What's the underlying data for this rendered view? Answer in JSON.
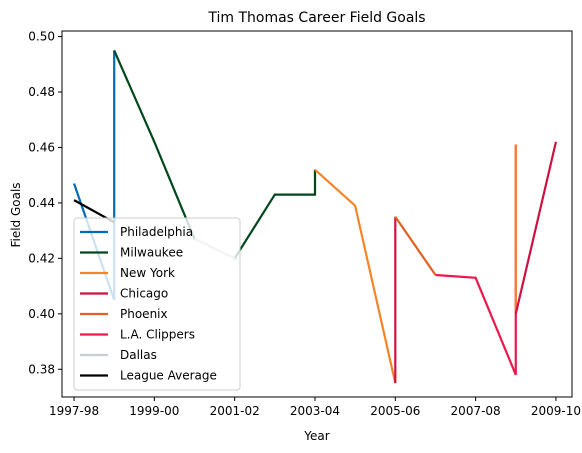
{
  "chart_data": {
    "type": "line",
    "title": "Tim Thomas  Career Field Goals",
    "xlabel": "Year",
    "ylabel": "Field Goals",
    "x_tick_labels": [
      "1997-98",
      "1999-00",
      "2001-02",
      "2003-04",
      "2005-06",
      "2007-08",
      "2009-10"
    ],
    "xlim": [
      1997.7,
      2010.4
    ],
    "ylim": [
      0.37,
      0.502
    ],
    "y_ticks": [
      0.38,
      0.4,
      0.42,
      0.44,
      0.46,
      0.48,
      0.5
    ],
    "y_tick_labels": [
      "0.38",
      "0.40",
      "0.42",
      "0.44",
      "0.46",
      "0.48",
      "0.50"
    ],
    "grid": false,
    "legend_placement": "lower-left",
    "series": [
      {
        "name": "Philadelphia",
        "color": "#006bb6",
        "points": [
          [
            1998,
            0.447
          ],
          [
            1999,
            0.405
          ],
          [
            1999,
            0.495
          ]
        ]
      },
      {
        "name": "Milwaukee",
        "color": "#00471b",
        "points": [
          [
            1999,
            0.495
          ],
          [
            2000,
            0.462
          ],
          [
            2001,
            0.427
          ],
          [
            2002,
            0.42
          ],
          [
            2003,
            0.443
          ],
          [
            2004,
            0.443
          ],
          [
            2004,
            0.452
          ]
        ]
      },
      {
        "name": "New York",
        "color": "#f58426",
        "points": [
          [
            2004,
            0.452
          ],
          [
            2005,
            0.439
          ],
          [
            2006,
            0.375
          ]
        ]
      },
      {
        "name": "Chicago",
        "color": "#ce1141",
        "points": [
          [
            2006,
            0.375
          ],
          [
            2006,
            0.435
          ]
        ]
      },
      {
        "name": "Phoenix",
        "color": "#e56020",
        "points": [
          [
            2006,
            0.435
          ],
          [
            2007,
            0.414
          ]
        ]
      },
      {
        "name": "L.A. Clippers",
        "color": "#ed174c",
        "points": [
          [
            2007,
            0.414
          ],
          [
            2008,
            0.413
          ],
          [
            2009,
            0.378
          ],
          [
            2009,
            0.461
          ]
        ]
      },
      {
        "name": "New York",
        "color": "#f58426",
        "legend": false,
        "points": [
          [
            2009,
            0.461
          ],
          [
            2009,
            0.4
          ]
        ]
      },
      {
        "name": "Chicago",
        "color": "#ce1141",
        "legend": false,
        "points": [
          [
            2009,
            0.4
          ],
          [
            2010,
            0.462
          ]
        ]
      },
      {
        "name": "Dallas",
        "color": "#c4ced4",
        "points": [
          [
            2001,
            0.427
          ],
          [
            2002,
            0.42
          ]
        ]
      },
      {
        "name": "League Average",
        "color": "#000000",
        "points": [
          [
            1998,
            0.441
          ],
          [
            1999,
            0.433
          ]
        ]
      }
    ],
    "legend": [
      {
        "label": "Philadelphia",
        "color": "#006bb6"
      },
      {
        "label": "Milwaukee",
        "color": "#00471b"
      },
      {
        "label": "New York",
        "color": "#f58426"
      },
      {
        "label": "Chicago",
        "color": "#ce1141"
      },
      {
        "label": "Phoenix",
        "color": "#e56020"
      },
      {
        "label": "L.A. Clippers",
        "color": "#ed174c"
      },
      {
        "label": "Dallas",
        "color": "#c4ced4"
      },
      {
        "label": "League Average",
        "color": "#000000"
      }
    ]
  }
}
